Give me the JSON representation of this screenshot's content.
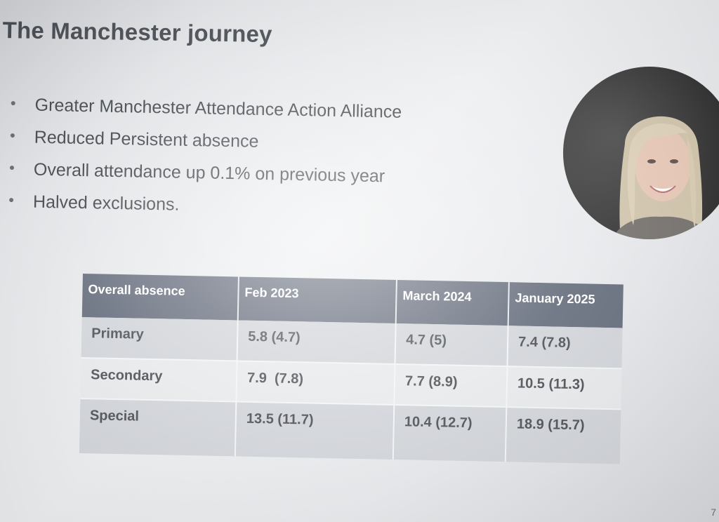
{
  "slide": {
    "title": "The Manchester journey",
    "page_number": "7"
  },
  "bullets": [
    "Greater Manchester Attendance Action Alliance",
    "Reduced Persistent absence",
    "Overall attendance up 0.1% on previous year",
    "Halved exclusions."
  ],
  "table": {
    "headers": [
      "Overall absence",
      "Feb 2023",
      "March 2024",
      "January 2025"
    ],
    "rows": [
      [
        "Primary",
        "5.8 (4.7)",
        "4.7 (5)",
        "7.4 (7.8)"
      ],
      [
        "Secondary",
        "7.9  (7.8)",
        "7.7 (8.9)",
        "10.5 (11.3)"
      ],
      [
        "Special",
        "13.5 (11.7)",
        "10.4 (12.7)",
        "18.9 (15.7)"
      ]
    ]
  },
  "colors": {
    "header_bg": "#5c6474",
    "row_dark": "#cfd2d7",
    "row_light": "#e6e8ea",
    "title_text": "#3c4148"
  },
  "icons": {
    "webcam": "presenter-webcam-photo"
  }
}
